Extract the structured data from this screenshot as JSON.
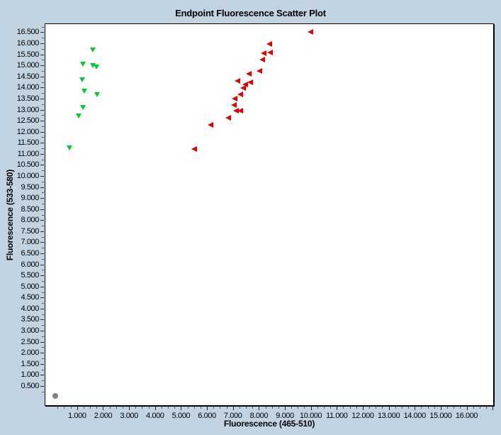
{
  "window": {
    "background_color": "#C2D3E1",
    "plot_background_color": "#FFFFFF",
    "plot_border_color": "#000000"
  },
  "chart_data": {
    "type": "scatter",
    "title": "Endpoint Fluorescence Scatter Plot",
    "xlabel": "Fluorescence (465-510)",
    "ylabel": "Fluorescence (533-580)",
    "xlim": [
      -0.25,
      17.05
    ],
    "ylim": [
      -0.4,
      16.9
    ],
    "grid": false,
    "legend": "none",
    "x_tick_values": [
      1,
      2,
      3,
      4,
      5,
      6,
      7,
      8,
      9,
      10,
      11,
      12,
      13,
      14,
      15,
      16
    ],
    "x_tick_labels": [
      "1.000",
      "2.000",
      "3.000",
      "4.000",
      "5.000",
      "6.000",
      "7.000",
      "8.000",
      "9.000",
      "10.000",
      "11.000",
      "12.000",
      "13.000",
      "14.000",
      "15.000",
      "16.000"
    ],
    "y_tick_values": [
      0.5,
      1,
      1.5,
      2,
      2.5,
      3,
      3.5,
      4,
      4.5,
      5,
      5.5,
      6,
      6.5,
      7,
      7.5,
      8,
      8.5,
      9,
      9.5,
      10,
      10.5,
      11,
      11.5,
      12,
      12.5,
      13,
      13.5,
      14,
      14.5,
      15,
      15.5,
      16,
      16.5
    ],
    "y_tick_labels": [
      "0.500",
      "1.000",
      "1.500",
      "2.000",
      "2.500",
      "3.000",
      "3.500",
      "4.000",
      "4.500",
      "5.000",
      "5.500",
      "6.000",
      "6.500",
      "7.000",
      "7.500",
      "8.000",
      "8.500",
      "9.000",
      "9.500",
      "10.000",
      "10.500",
      "11.000",
      "11.500",
      "12.000",
      "12.500",
      "13.000",
      "13.500",
      "14.000",
      "14.500",
      "15.000",
      "15.500",
      "16.000",
      "16.500"
    ],
    "minor_tick_step": 0.25,
    "series": [
      {
        "name": "green-series",
        "marker": "triangle-down",
        "color": "#00CC33",
        "points": [
          [
            1.61,
            15.71
          ],
          [
            1.25,
            15.07
          ],
          [
            1.63,
            14.99
          ],
          [
            1.75,
            14.93
          ],
          [
            1.2,
            14.35
          ],
          [
            1.29,
            13.84
          ],
          [
            1.77,
            13.68
          ],
          [
            1.25,
            13.09
          ],
          [
            1.08,
            12.72
          ],
          [
            0.72,
            11.28
          ]
        ]
      },
      {
        "name": "red-series",
        "marker": "triangle-left",
        "color": "#E80000",
        "points": [
          [
            9.97,
            16.49
          ],
          [
            8.39,
            15.95
          ],
          [
            8.42,
            15.58
          ],
          [
            8.17,
            15.55
          ],
          [
            8.13,
            15.26
          ],
          [
            8.03,
            14.73
          ],
          [
            7.6,
            14.61
          ],
          [
            7.18,
            14.3
          ],
          [
            7.67,
            14.21
          ],
          [
            7.48,
            14.13
          ],
          [
            7.39,
            13.95
          ],
          [
            7.29,
            13.66
          ],
          [
            7.06,
            13.49
          ],
          [
            7.04,
            13.18
          ],
          [
            7.12,
            12.93
          ],
          [
            7.27,
            12.93
          ],
          [
            6.81,
            12.63
          ],
          [
            6.13,
            12.29
          ],
          [
            5.51,
            11.19
          ]
        ]
      },
      {
        "name": "gray-series",
        "marker": "circle",
        "color": "#808080",
        "points": [
          [
            0.17,
            0.05
          ]
        ]
      }
    ]
  }
}
